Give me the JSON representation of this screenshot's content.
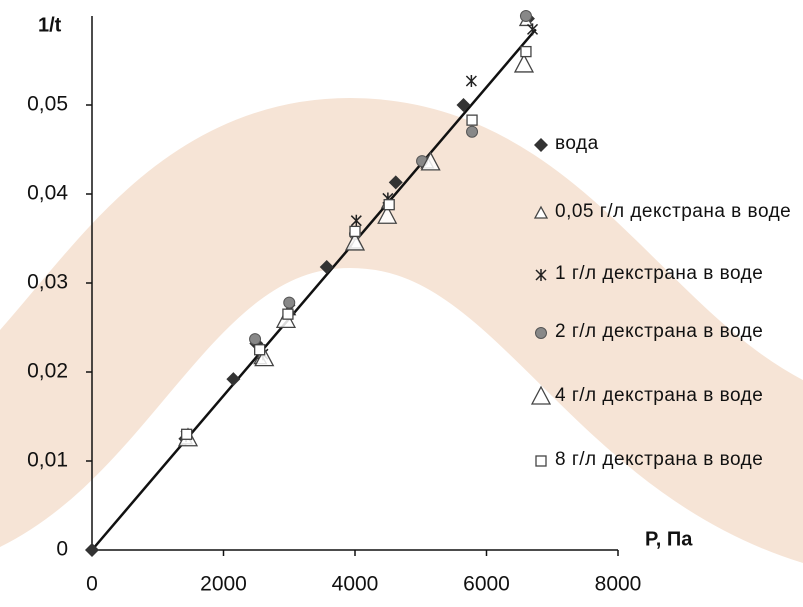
{
  "chart_data": {
    "type": "scatter",
    "y_label": "1/t",
    "x_label": "P, Па",
    "xlim": [
      0,
      8000
    ],
    "xticks": [
      0,
      2000,
      4000,
      6000,
      8000
    ],
    "ylim": [
      0,
      0.06
    ],
    "yticks": [
      0,
      {
        "value": 0.01,
        "label": "0,01"
      },
      {
        "value": 0.02,
        "label": "0,02"
      },
      {
        "value": 0.03,
        "label": "0,03"
      },
      {
        "value": 0.04,
        "label": "0,04"
      },
      {
        "value": 0.05,
        "label": "0,05"
      }
    ],
    "trendline": {
      "color": "#111111",
      "x": [
        0,
        6750
      ],
      "values": [
        0,
        0.0585
      ]
    },
    "series": [
      {
        "name": "вода",
        "marker": "diamond",
        "color": "#333333",
        "x": [
          0,
          1420,
          2150,
          2500,
          3570,
          4620,
          5650,
          6630
        ],
        "values": [
          0,
          0.0125,
          0.0192,
          0.0232,
          0.0318,
          0.0413,
          0.05,
          0.0597
        ]
      },
      {
        "name": "0,05 г/л декстрана в воде",
        "marker": "small-triangle",
        "color": "#444444",
        "x": [
          1430,
          2560,
          3000,
          4020,
          4500,
          5100,
          6600
        ],
        "values": [
          0.0125,
          0.0215,
          0.027,
          0.0345,
          0.039,
          0.0435,
          0.0595
        ]
      },
      {
        "name": "1 г/л декстрана в воде",
        "marker": "asterisk",
        "color": "#222222",
        "x": [
          1430,
          2600,
          3010,
          4020,
          4500,
          5770,
          6700
        ],
        "values": [
          0.0128,
          0.022,
          0.027,
          0.037,
          0.0395,
          0.0527,
          0.0585
        ]
      },
      {
        "name": "2 г/л декстрана в воде",
        "marker": "circle",
        "color": "#888888",
        "x": [
          2480,
          3000,
          4000,
          5020,
          5780,
          6600
        ],
        "values": [
          0.0237,
          0.0278,
          0.0355,
          0.0437,
          0.047,
          0.06
        ]
      },
      {
        "name": "4 г/л декстрана в воде",
        "marker": "triangle",
        "color": "#444444",
        "x": [
          1460,
          2620,
          2950,
          4000,
          4490,
          5150,
          6570
        ],
        "values": [
          0.0125,
          0.0215,
          0.0258,
          0.0345,
          0.0375,
          0.0435,
          0.0545
        ]
      },
      {
        "name": "8 г/л декстрана в воде",
        "marker": "square",
        "color": "#444444",
        "x": [
          1440,
          2550,
          2980,
          4000,
          4520,
          5780,
          6600
        ],
        "values": [
          0.013,
          0.0225,
          0.0265,
          0.0358,
          0.0388,
          0.0483,
          0.056
        ]
      }
    ]
  }
}
